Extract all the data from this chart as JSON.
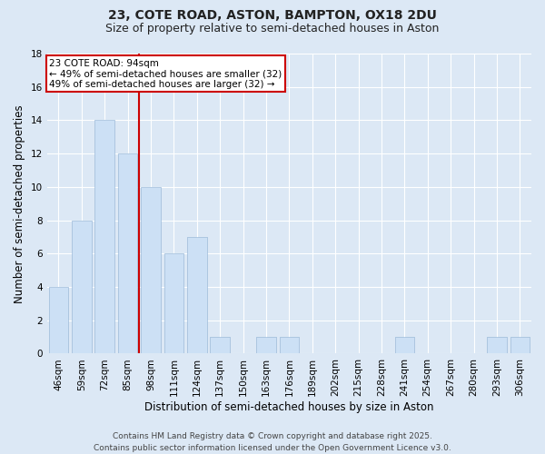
{
  "title": "23, COTE ROAD, ASTON, BAMPTON, OX18 2DU",
  "subtitle": "Size of property relative to semi-detached houses in Aston",
  "xlabel": "Distribution of semi-detached houses by size in Aston",
  "ylabel": "Number of semi-detached properties",
  "categories": [
    "46sqm",
    "59sqm",
    "72sqm",
    "85sqm",
    "98sqm",
    "111sqm",
    "124sqm",
    "137sqm",
    "150sqm",
    "163sqm",
    "176sqm",
    "189sqm",
    "202sqm",
    "215sqm",
    "228sqm",
    "241sqm",
    "254sqm",
    "267sqm",
    "280sqm",
    "293sqm",
    "306sqm"
  ],
  "values": [
    4,
    8,
    14,
    12,
    10,
    6,
    7,
    1,
    0,
    1,
    1,
    0,
    0,
    0,
    0,
    1,
    0,
    0,
    0,
    1,
    1
  ],
  "bar_color": "#cce0f5",
  "bar_edgecolor": "#aac4df",
  "vline_x": 3.5,
  "vline_color": "#cc0000",
  "vline_label": "23 COTE ROAD: 94sqm",
  "annotation_smaller": "← 49% of semi-detached houses are smaller (32)",
  "annotation_larger": "49% of semi-detached houses are larger (32) →",
  "annotation_box_color": "#cc0000",
  "ylim": [
    0,
    18
  ],
  "yticks": [
    0,
    2,
    4,
    6,
    8,
    10,
    12,
    14,
    16,
    18
  ],
  "background_color": "#dce8f5",
  "grid_color": "#ffffff",
  "footer_line1": "Contains HM Land Registry data © Crown copyright and database right 2025.",
  "footer_line2": "Contains public sector information licensed under the Open Government Licence v3.0.",
  "title_fontsize": 10,
  "subtitle_fontsize": 9,
  "axis_label_fontsize": 8.5,
  "tick_fontsize": 7.5,
  "annotation_fontsize": 7.5,
  "footer_fontsize": 6.5
}
